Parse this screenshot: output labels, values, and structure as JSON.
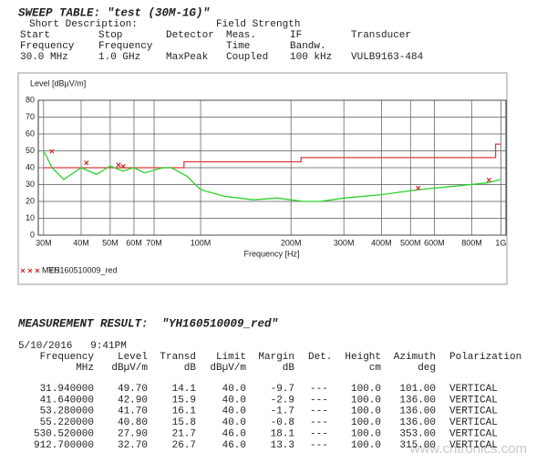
{
  "sweep": {
    "title": "SWEEP TABLE: \"test (30M-1G)\"",
    "description_label": "Short Description:",
    "description": "Field Strength",
    "rows": [
      [
        "Start",
        "Stop",
        "Detector",
        "Meas.",
        "IF",
        "Transducer"
      ],
      [
        "Frequency",
        "Frequency",
        null,
        "Time",
        "Bandw.",
        null
      ],
      [
        "30.0 MHz",
        "1.0 GHz",
        "MaxPeak",
        "Coupled",
        "100 kHz",
        "VULB9163-484"
      ]
    ]
  },
  "chart_data": {
    "type": "line",
    "y_label": "Level [dBµV/m]",
    "x_label": "Frequency [Hz]",
    "log_x": true,
    "grid": true,
    "dataset": "YH160510009_red",
    "xlim": [
      28800000,
      1040000000
    ],
    "ylim": [
      0,
      80
    ],
    "yticks": [
      0,
      10,
      20,
      30,
      40,
      50,
      60,
      70,
      80
    ],
    "xticks": [
      {
        "value": 30000000,
        "label": "30M"
      },
      {
        "value": 40000000,
        "label": "40M"
      },
      {
        "value": 50000000,
        "label": "50M"
      },
      {
        "value": 60000000,
        "label": "60M"
      },
      {
        "value": 70000000,
        "label": "70M"
      },
      {
        "value": 100000000,
        "label": "100M"
      },
      {
        "value": 200000000,
        "label": "200M"
      },
      {
        "value": 300000000,
        "label": "300M"
      },
      {
        "value": 400000000,
        "label": "400M"
      },
      {
        "value": 500000000,
        "label": "500M"
      },
      {
        "value": 600000000,
        "label": "600M"
      },
      {
        "value": 800000000,
        "label": "800M"
      },
      {
        "value": 1000000000,
        "label": "1G"
      }
    ],
    "series": [
      {
        "color": "#e03a3a",
        "x": [
          30000000,
          88000000,
          88000000,
          216000000,
          216000000,
          960000000,
          960000000,
          1000000000
        ],
        "values": [
          40,
          40,
          43.5,
          43.5,
          46,
          46,
          54,
          54
        ]
      },
      {
        "color": "#2bd12b",
        "x": [
          30000000,
          32000000,
          35000000,
          40000000,
          45000000,
          50000000,
          55000000,
          60000000,
          65000000,
          75000000,
          80000000,
          90000000,
          100000000,
          120000000,
          150000000,
          180000000,
          220000000,
          250000000,
          300000000,
          400000000,
          530000000,
          700000000,
          900000000,
          1000000000
        ],
        "values": [
          50,
          40,
          33,
          40,
          36,
          41,
          38,
          40,
          37,
          40,
          40,
          35,
          27,
          23,
          21,
          22,
          20,
          20,
          22,
          24,
          27,
          29,
          31,
          33
        ]
      },
      {
        "name": "MES",
        "color": "#d02020",
        "markers_only": true,
        "x": [
          31940000,
          41640000,
          53280000,
          55220000,
          530520000,
          912700000
        ],
        "values": [
          49.7,
          42.9,
          41.7,
          40.8,
          27.9,
          32.7
        ]
      }
    ]
  },
  "measurement": {
    "title": "MEASUREMENT RESULT:  \"YH160510009_red\"",
    "timestamp": "5/10/2016   9:41PM",
    "headers": [
      [
        "Frequency",
        "MHz"
      ],
      [
        "Level",
        "dBµV/m"
      ],
      [
        "Transd",
        "dB"
      ],
      [
        "Limit",
        "dBµV/m"
      ],
      [
        "Margin",
        "dB"
      ],
      [
        "Det.",
        null
      ],
      [
        "Height",
        "cm"
      ],
      [
        "Azimuth",
        "deg"
      ],
      [
        "Polarization",
        null
      ]
    ],
    "rows": [
      [
        "31.940000",
        "49.70",
        "14.1",
        "40.0",
        "-9.7",
        "---",
        "100.0",
        "101.00",
        "VERTICAL"
      ],
      [
        "41.640000",
        "42.90",
        "15.9",
        "40.0",
        "-2.9",
        "---",
        "100.0",
        "136.00",
        "VERTICAL"
      ],
      [
        "53.280000",
        "41.70",
        "16.1",
        "40.0",
        "-1.7",
        "---",
        "100.0",
        "136.00",
        "VERTICAL"
      ],
      [
        "55.220000",
        "40.80",
        "15.8",
        "40.0",
        "-0.8",
        "---",
        "100.0",
        "136.00",
        "VERTICAL"
      ],
      [
        "530.520000",
        "27.90",
        "21.7",
        "46.0",
        "18.1",
        "---",
        "100.0",
        "353.00",
        "VERTICAL"
      ],
      [
        "912.700000",
        "32.70",
        "26.7",
        "46.0",
        "13.3",
        "---",
        "100.0",
        "315.00",
        "VERTICAL"
      ]
    ]
  },
  "watermark": "www.cntronics.com"
}
